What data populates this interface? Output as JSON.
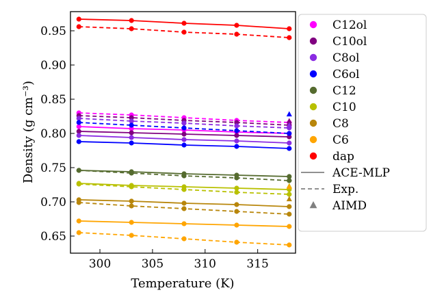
{
  "chart_data": {
    "type": "line",
    "xlabel": "Temperature (K)",
    "ylabel": "Density (g cm⁻³)",
    "xlim": [
      297.2,
      318.6
    ],
    "ylim": [
      0.625,
      0.978
    ],
    "x_ticks": [
      "300",
      "305",
      "310",
      "315"
    ],
    "y_ticks": [
      "0.65",
      "0.70",
      "0.75",
      "0.80",
      "0.85",
      "0.90",
      "0.95"
    ],
    "x": [
      298,
      303,
      308,
      313,
      318
    ],
    "legend_position": "right",
    "series": [
      {
        "name": "C12ol",
        "color": "#ff00ff",
        "ace": [
          0.81,
          0.807,
          0.805,
          0.802,
          0.8
        ],
        "exp": [
          0.83,
          0.827,
          0.823,
          0.819,
          0.816
        ],
        "aimd": 0.815
      },
      {
        "name": "C10ol",
        "color": "#800080",
        "ace": [
          0.803,
          0.801,
          0.799,
          0.797,
          0.795
        ],
        "exp": [
          0.826,
          0.823,
          0.819,
          0.816,
          0.812
        ],
        "aimd": 0.818
      },
      {
        "name": "C8ol",
        "color": "#8a2be2",
        "ace": [
          0.797,
          0.794,
          0.791,
          0.789,
          0.786
        ],
        "exp": [
          0.822,
          0.818,
          0.815,
          0.811,
          0.808
        ],
        "aimd": 0.812
      },
      {
        "name": "C6ol",
        "color": "#0000ff",
        "ace": [
          0.788,
          0.786,
          0.783,
          0.781,
          0.778
        ],
        "exp": [
          0.816,
          0.812,
          0.808,
          0.804,
          0.8
        ],
        "aimd": 0.828
      },
      {
        "name": "C12",
        "color": "#556b2f",
        "ace": [
          0.746,
          0.744,
          0.741,
          0.739,
          0.737
        ],
        "exp": [
          0.746,
          0.742,
          0.738,
          0.735,
          0.731
        ],
        "aimd": 0.734
      },
      {
        "name": "C10",
        "color": "#b8c000",
        "ace": [
          0.727,
          0.724,
          0.722,
          0.72,
          0.718
        ],
        "exp": [
          0.726,
          0.722,
          0.718,
          0.714,
          0.711
        ],
        "aimd": 0.723
      },
      {
        "name": "C8",
        "color": "#b8860b",
        "ace": [
          0.703,
          0.701,
          0.698,
          0.696,
          0.693
        ],
        "exp": [
          0.699,
          0.694,
          0.69,
          0.686,
          0.682
        ],
        "aimd": 0.704
      },
      {
        "name": "C6",
        "color": "#ffa500",
        "ace": [
          0.672,
          0.67,
          0.668,
          0.666,
          0.664
        ],
        "exp": [
          0.655,
          0.651,
          0.646,
          0.641,
          0.637
        ],
        "aimd": 0.722
      },
      {
        "name": "dap",
        "color": "#ff0000",
        "ace": [
          0.967,
          0.965,
          0.961,
          0.958,
          0.953
        ],
        "exp": [
          0.956,
          0.953,
          0.948,
          0.945,
          0.94
        ],
        "aimd": null
      }
    ],
    "style_legend": [
      {
        "label": "ACE-MLP",
        "style": "solid"
      },
      {
        "label": "Exp.",
        "style": "dashed"
      },
      {
        "label": "AIMD",
        "style": "triangle"
      }
    ],
    "grid": false
  }
}
